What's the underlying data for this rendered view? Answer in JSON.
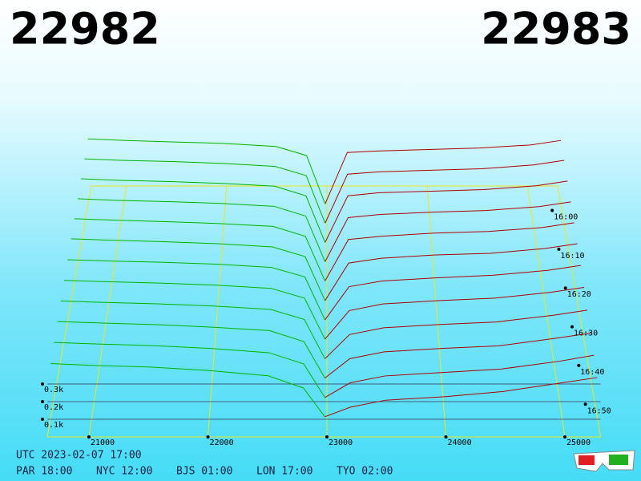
{
  "chart_data": {
    "type": "depth3d",
    "bid": 22982,
    "ask": 22983,
    "bid_color": "#00b400",
    "ask_color": "#b00000",
    "utc": "UTC 2023-02-07 17:00",
    "clocks": [
      "PAR 18:00",
      "NYC 12:00",
      "BJS 01:00",
      "LON 17:00",
      "TYO 02:00"
    ],
    "xlim": [
      20650,
      25300
    ],
    "xticks": [
      21000,
      22000,
      23000,
      24000,
      25000
    ],
    "depth_ticks": [
      {
        "value": 100,
        "label": "0.1k"
      },
      {
        "value": 200,
        "label": "0.2k"
      },
      {
        "value": 300,
        "label": "0.3k"
      }
    ],
    "time_ticks": [
      "16:00",
      "16:10",
      "16:20",
      "16:30",
      "16:40",
      "16:50"
    ],
    "bid_prices": [
      20650,
      21000,
      21500,
      22000,
      22500,
      22800,
      22982
    ],
    "ask_prices": [
      22983,
      23200,
      23500,
      24000,
      24500,
      25000,
      25300
    ],
    "snapshots": [
      {
        "bids": [
          440,
          430,
          420,
          410,
          390,
          330,
          10
        ],
        "asks": [
          10,
          350,
          360,
          370,
          380,
          400,
          430
        ]
      },
      {
        "bids": [
          430,
          420,
          412,
          400,
          380,
          320,
          10
        ],
        "asks": [
          10,
          330,
          345,
          355,
          365,
          390,
          420
        ]
      },
      {
        "bids": [
          420,
          410,
          402,
          390,
          372,
          310,
          10
        ],
        "asks": [
          10,
          310,
          330,
          340,
          350,
          375,
          405
        ]
      },
      {
        "bids": [
          410,
          400,
          392,
          380,
          362,
          300,
          10
        ],
        "asks": [
          10,
          290,
          310,
          325,
          335,
          360,
          390
        ]
      },
      {
        "bids": [
          400,
          392,
          382,
          370,
          352,
          290,
          10
        ],
        "asks": [
          10,
          270,
          290,
          310,
          320,
          345,
          375
        ]
      },
      {
        "bids": [
          390,
          382,
          372,
          360,
          340,
          280,
          8
        ],
        "asks": [
          8,
          240,
          270,
          290,
          300,
          330,
          360
        ]
      },
      {
        "bids": [
          375,
          368,
          360,
          348,
          328,
          270,
          8
        ],
        "asks": [
          8,
          210,
          245,
          265,
          280,
          310,
          340
        ]
      },
      {
        "bids": [
          362,
          355,
          346,
          334,
          314,
          255,
          8
        ],
        "asks": [
          8,
          180,
          220,
          240,
          255,
          290,
          320
        ]
      },
      {
        "bids": [
          350,
          342,
          333,
          320,
          300,
          240,
          6
        ],
        "asks": [
          6,
          150,
          190,
          210,
          225,
          265,
          295
        ]
      },
      {
        "bids": [
          338,
          330,
          320,
          305,
          285,
          220,
          6
        ],
        "asks": [
          6,
          120,
          160,
          180,
          195,
          240,
          270
        ]
      },
      {
        "bids": [
          325,
          316,
          306,
          290,
          265,
          200,
          5
        ],
        "asks": [
          5,
          90,
          130,
          150,
          170,
          215,
          250
        ]
      },
      {
        "bids": [
          310,
          300,
          290,
          270,
          240,
          170,
          5
        ],
        "asks": [
          5,
          60,
          100,
          120,
          150,
          200,
          230
        ]
      }
    ]
  }
}
